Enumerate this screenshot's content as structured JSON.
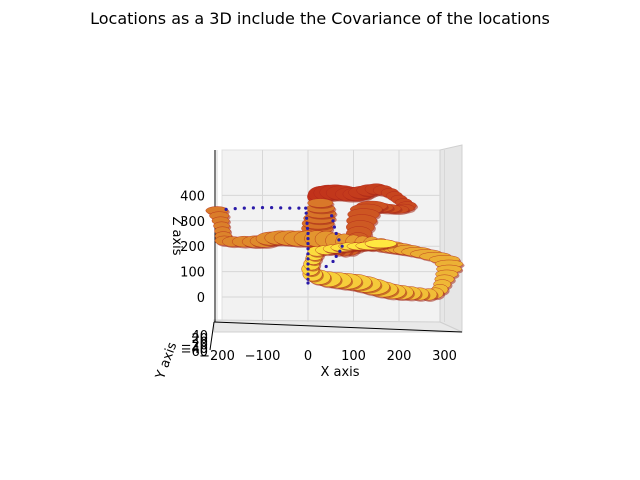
{
  "chart_data": {
    "type": "scatter",
    "projection": "3d",
    "title": "Locations as a 3D include the Covariance of the locations",
    "xlabel": "X axis",
    "ylabel": "Y axis",
    "zlabel": "Z axis",
    "x_ticks": [
      "−200",
      "−100",
      "0",
      "100",
      "200",
      "300"
    ],
    "z_ticks": [
      "0",
      "100",
      "200",
      "300",
      "400"
    ],
    "y_ticks": [
      "−60",
      "−40",
      "−20",
      "0",
      "20",
      "40"
    ],
    "xlim": [
      -210,
      340
    ],
    "zlim": [
      -60,
      460
    ],
    "grid": true,
    "colormap": "autumn / hot (red → yellow)",
    "series": [
      {
        "style": "covariance-ellipsoids",
        "color_start": "#c0301a",
        "color_end": "#ffe840",
        "points": [
          [
            25,
            395
          ],
          [
            30,
            405
          ],
          [
            45,
            410
          ],
          [
            60,
            412
          ],
          [
            75,
            410
          ],
          [
            95,
            405
          ],
          [
            110,
            405
          ],
          [
            120,
            412
          ],
          [
            135,
            420
          ],
          [
            150,
            425
          ],
          [
            165,
            420
          ],
          [
            180,
            410
          ],
          [
            190,
            398
          ],
          [
            200,
            385
          ],
          [
            210,
            372
          ],
          [
            218,
            360
          ],
          [
            210,
            350
          ],
          [
            195,
            345
          ],
          [
            175,
            348
          ],
          [
            155,
            352
          ],
          [
            140,
            358
          ],
          [
            128,
            345
          ],
          [
            122,
            325
          ],
          [
            118,
            300
          ],
          [
            115,
            275
          ],
          [
            112,
            250
          ],
          [
            110,
            225
          ],
          [
            105,
            205
          ],
          [
            95,
            195
          ],
          [
            80,
            192
          ],
          [
            65,
            196
          ],
          [
            50,
            200
          ],
          [
            40,
            205
          ],
          [
            30,
            210
          ],
          [
            20,
            215
          ],
          [
            15,
            230
          ],
          [
            18,
            250
          ],
          [
            20,
            270
          ],
          [
            22,
            290
          ],
          [
            25,
            310
          ],
          [
            28,
            330
          ],
          [
            28,
            350
          ],
          [
            27,
            370
          ],
          [
            -200,
            340
          ],
          [
            -195,
            320
          ],
          [
            -192,
            300
          ],
          [
            -190,
            280
          ],
          [
            -188,
            260
          ],
          [
            -186,
            240
          ],
          [
            -184,
            222
          ],
          [
            -165,
            218
          ],
          [
            -140,
            218
          ],
          [
            -115,
            218
          ],
          [
            -95,
            220
          ],
          [
            -80,
            230
          ],
          [
            -60,
            233
          ],
          [
            -40,
            232
          ],
          [
            -20,
            230
          ],
          [
            0,
            230
          ],
          [
            20,
            230
          ],
          [
            40,
            228
          ],
          [
            60,
            222
          ],
          [
            80,
            218
          ],
          [
            100,
            215
          ],
          [
            120,
            212
          ],
          [
            140,
            210
          ],
          [
            160,
            205
          ],
          [
            175,
            200
          ],
          [
            190,
            195
          ],
          [
            205,
            190
          ],
          [
            220,
            185
          ],
          [
            240,
            178
          ],
          [
            260,
            170
          ],
          [
            280,
            160
          ],
          [
            300,
            148
          ],
          [
            310,
            130
          ],
          [
            310,
            110
          ],
          [
            305,
            90
          ],
          [
            300,
            70
          ],
          [
            295,
            50
          ],
          [
            290,
            30
          ],
          [
            280,
            15
          ],
          [
            265,
            10
          ],
          [
            245,
            12
          ],
          [
            225,
            15
          ],
          [
            205,
            18
          ],
          [
            185,
            22
          ],
          [
            165,
            30
          ],
          [
            145,
            40
          ],
          [
            125,
            50
          ],
          [
            105,
            58
          ],
          [
            85,
            62
          ],
          [
            65,
            66
          ],
          [
            45,
            70
          ],
          [
            25,
            78
          ],
          [
            10,
            90
          ],
          [
            5,
            110
          ],
          [
            8,
            130
          ],
          [
            12,
            150
          ],
          [
            15,
            165
          ],
          [
            20,
            180
          ],
          [
            40,
            185
          ],
          [
            60,
            190
          ],
          [
            80,
            195
          ],
          [
            100,
            200
          ],
          [
            120,
            200
          ],
          [
            140,
            202
          ],
          [
            160,
            210
          ]
        ]
      },
      {
        "style": "points",
        "color": "#2a1aa8",
        "points": [
          [
            -180,
            345
          ],
          [
            -160,
            348
          ],
          [
            -140,
            350
          ],
          [
            -120,
            351
          ],
          [
            -100,
            352
          ],
          [
            -80,
            352
          ],
          [
            -60,
            351
          ],
          [
            -40,
            350
          ],
          [
            -20,
            350
          ],
          [
            -5,
            350
          ],
          [
            -4,
            330
          ],
          [
            -3,
            310
          ],
          [
            -2,
            290
          ],
          [
            -1,
            270
          ],
          [
            0,
            250
          ],
          [
            0,
            230
          ],
          [
            0,
            210
          ],
          [
            0,
            190
          ],
          [
            0,
            170
          ],
          [
            0,
            150
          ],
          [
            0,
            130
          ],
          [
            0,
            110
          ],
          [
            0,
            90
          ],
          [
            0,
            70
          ],
          [
            0,
            55
          ],
          [
            40,
            120
          ],
          [
            55,
            140
          ],
          [
            62,
            160
          ],
          [
            70,
            180
          ],
          [
            75,
            200
          ],
          [
            68,
            225
          ],
          [
            62,
            250
          ],
          [
            58,
            275
          ],
          [
            55,
            300
          ],
          [
            52,
            320
          ]
        ]
      }
    ]
  }
}
